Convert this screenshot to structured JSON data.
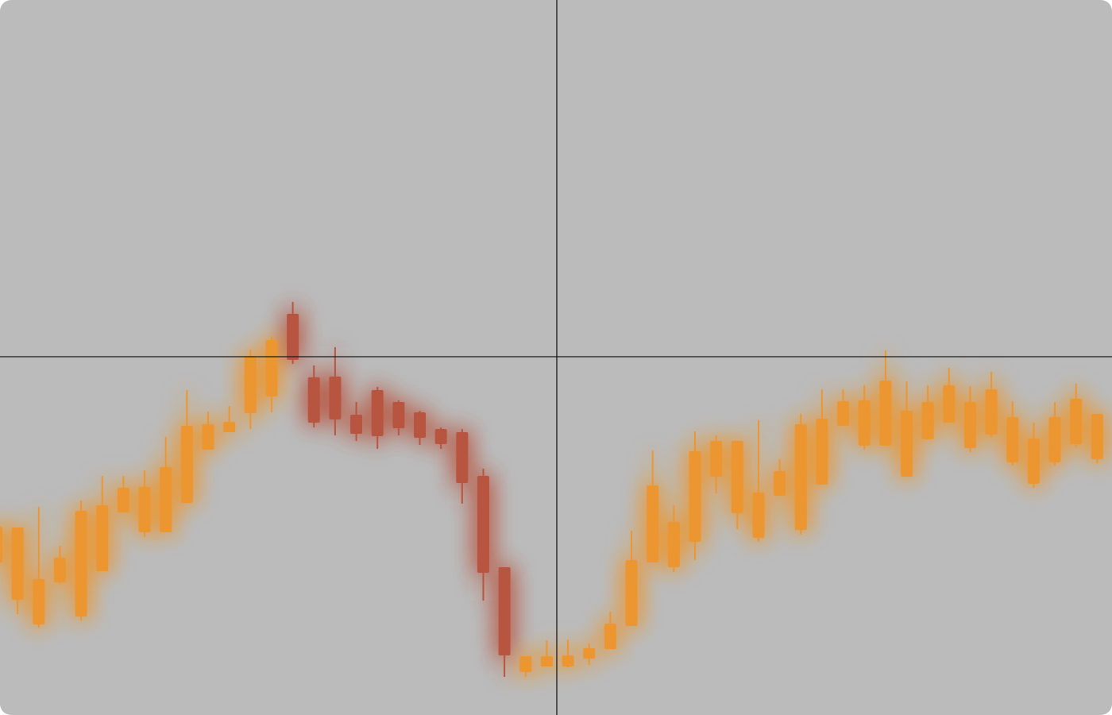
{
  "chart_data": {
    "type": "candlestick",
    "x": [
      0,
      1,
      2,
      3,
      4,
      5,
      6,
      7,
      8,
      9,
      10,
      11,
      12,
      13,
      14,
      15,
      16,
      17,
      18,
      19,
      20,
      21,
      22,
      23,
      24,
      25,
      26,
      27,
      28,
      29,
      30,
      31,
      32,
      33,
      34,
      35,
      36,
      37,
      38,
      39,
      40,
      41,
      42,
      43,
      44,
      45,
      46,
      47,
      48,
      49,
      50,
      51,
      52
    ],
    "open": [
      192,
      145,
      114,
      167,
      124,
      181,
      255,
      230,
      230,
      267,
      334,
      356,
      380,
      401,
      505,
      425,
      426,
      378,
      409,
      394,
      381,
      360,
      356,
      301,
      186,
      54,
      61,
      61,
      71,
      83,
      112,
      192,
      186,
      218,
      300,
      254,
      223,
      276,
      233,
      290,
      364,
      339,
      339,
      300,
      347,
      368,
      336,
      353,
      318,
      291,
      318,
      341,
      322
    ],
    "high": [
      245,
      236,
      262,
      213,
      270,
      301,
      301,
      308,
      350,
      409,
      382,
      389,
      460,
      477,
      520,
      440,
      463,
      394,
      413,
      396,
      383,
      362,
      360,
      310,
      186,
      74,
      94,
      95,
      90,
      130,
      232,
      333,
      264,
      357,
      352,
      345,
      371,
      322,
      379,
      410,
      410,
      415,
      459,
      420,
      415,
      437,
      414,
      432,
      395,
      368,
      394,
      417,
      379
    ],
    "low": [
      185,
      127,
      110,
      165,
      119,
      181,
      255,
      224,
      230,
      267,
      334,
      356,
      360,
      381,
      442,
      362,
      352,
      345,
      335,
      352,
      340,
      335,
      266,
      144,
      48,
      48,
      61,
      60,
      63,
      83,
      112,
      192,
      180,
      195,
      279,
      234,
      218,
      276,
      227,
      290,
      364,
      334,
      339,
      300,
      347,
      368,
      331,
      349,
      314,
      286,
      314,
      337,
      317
    ],
    "close": [
      237,
      236,
      171,
      198,
      257,
      264,
      286,
      287,
      312,
      364,
      366,
      369,
      452,
      472,
      447,
      368,
      372,
      354,
      351,
      361,
      349,
      341,
      292,
      179,
      75,
      74,
      74,
      75,
      84,
      115,
      195,
      289,
      243,
      332,
      345,
      345,
      280,
      307,
      366,
      373,
      395,
      396,
      421,
      383,
      394,
      415,
      394,
      410,
      375,
      348,
      375,
      398,
      379
    ],
    "up_color": "#ec9630",
    "down_color": "#b85440",
    "xlim": [
      0.17,
      52.7
    ],
    "ylim": [
      0,
      900
    ]
  }
}
